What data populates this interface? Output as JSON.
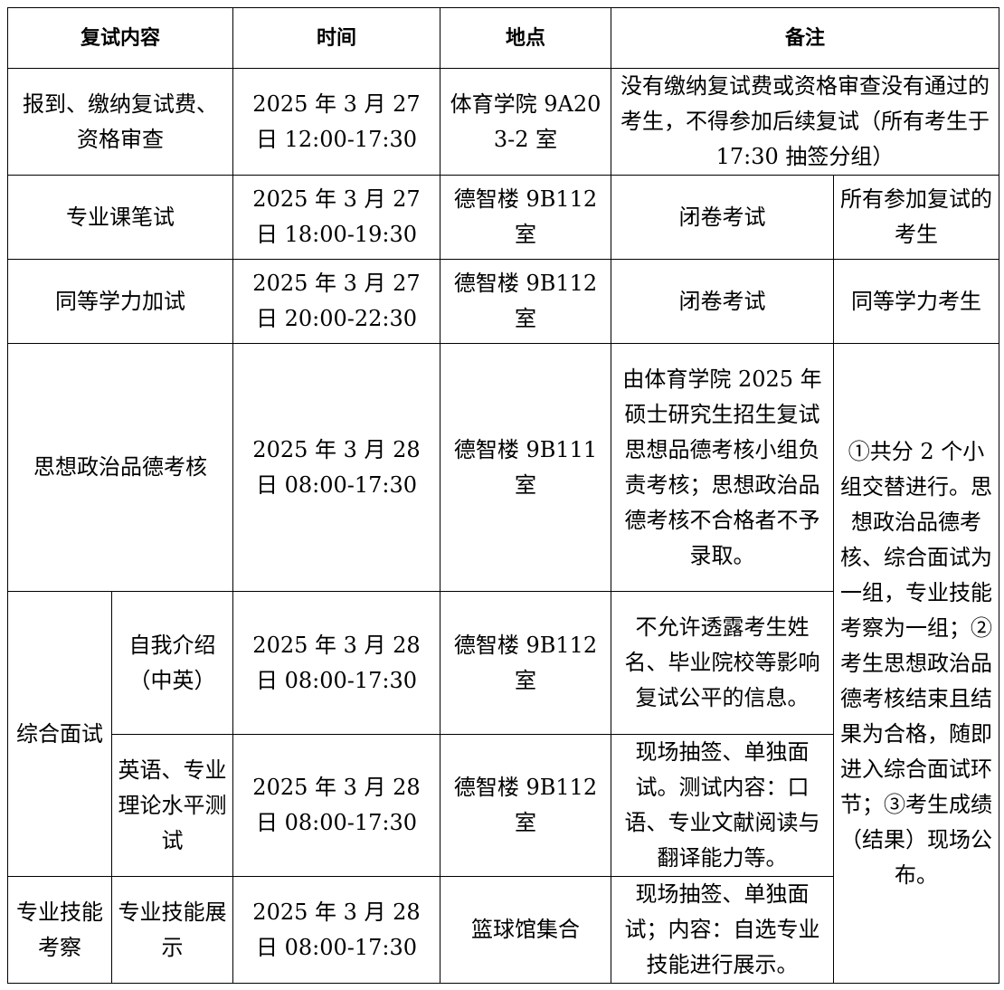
{
  "header": {
    "content": "复试内容",
    "time": "时间",
    "place": "地点",
    "note": "备注"
  },
  "rows": [
    {
      "item": "报到、缴纳复试费、资格审查",
      "time": "2025 年 3 月 27 日 12:00-17:30",
      "place": "体育学院 9A203-2 室",
      "note": "没有缴纳复试费或资格审查没有通过的考生，不得参加后续复试（所有考生于 17:30 抽签分组）"
    },
    {
      "item": "专业课笔试",
      "time": "2025 年 3 月 27 日 18:00-19:30",
      "place": "德智楼 9B112 室",
      "note": "闭卷考试",
      "note2": "所有参加复试的考生"
    },
    {
      "item": "同等学力加试",
      "time": "2025 年 3 月 27 日 20:00-22:30",
      "place": "德智楼 9B112 室",
      "note": "闭卷考试",
      "note2": "同等学力考生"
    },
    {
      "item": "思想政治品德考核",
      "time": "2025 年 3 月 28 日 08:00-17:30",
      "place": "德智楼 9B111 室",
      "note": "由体育学院 2025 年硕士研究生招生复试思想品德考核小组负责考核；思想政治品德考核不合格者不予录取。"
    },
    {
      "group": "综合面试",
      "item": "自我介绍（中英）",
      "time": "2025 年 3 月 28 日 08:00-17:30",
      "place": "德智楼 9B112 室",
      "note": "不允许透露考生姓名、毕业院校等影响复试公平的信息。"
    },
    {
      "item": "英语、专业理论水平测试",
      "time": "2025 年 3 月 28 日 08:00-17:30",
      "place": "德智楼 9B112 室",
      "note": "现场抽签、单独面试。测试内容：口语、专业文献阅读与翻译能力等。"
    },
    {
      "group": "专业技能考察",
      "item": "专业技能展示",
      "time": "2025 年 3 月 28 日 08:00-17:30",
      "place": "篮球馆集合",
      "note": "现场抽签、单独面试；内容：自选专业技能进行展示。"
    }
  ],
  "side_note": "①共分 2 个小组交替进行。思想政治品德考核、综合面试为一组，专业技能考察为一组；②考生思想政治品德考核结束且结果为合格，随即进入综合面试环节；③考生成绩（结果）现场公布。"
}
